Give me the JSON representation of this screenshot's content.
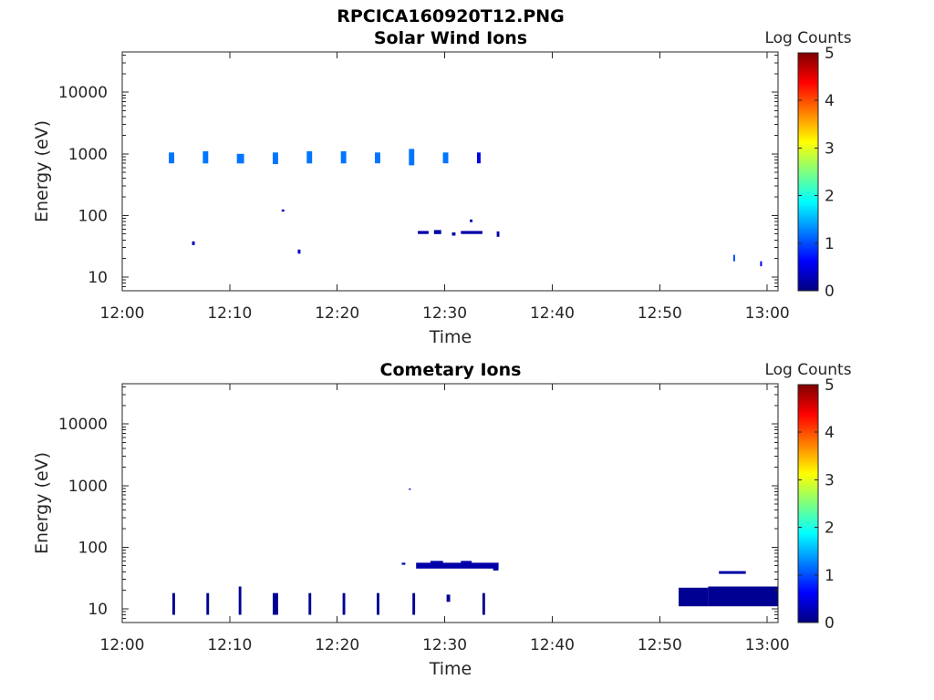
{
  "figure_title": "RPCICA160920T12.PNG",
  "colorbar_ticks": [
    "0",
    "1",
    "2",
    "3",
    "4",
    "5"
  ],
  "colormap": [
    "#00007f",
    "#0000ff",
    "#007fff",
    "#00ffff",
    "#7fff7f",
    "#ffff00",
    "#ff7f00",
    "#ff0000",
    "#7f0000"
  ],
  "chart_data": [
    {
      "type": "heatmap",
      "title": "Solar Wind Ions",
      "xlabel": "Time",
      "ylabel": "Energy (eV)",
      "y_scale": "log",
      "xlim": [
        "12:00",
        "13:01"
      ],
      "ylim": [
        6,
        45000
      ],
      "x_ticks": [
        "12:00",
        "12:10",
        "12:20",
        "12:30",
        "12:40",
        "12:50",
        "13:00"
      ],
      "y_ticks": [
        "10",
        "100",
        "1000",
        "10000"
      ],
      "colorbar_label": "Log Counts",
      "clim": [
        0,
        5
      ],
      "blobs": [
        {
          "t0": "12:04:20",
          "t1": "12:04:50",
          "e0": 700,
          "e1": 1050,
          "level": 1.2
        },
        {
          "t0": "12:07:30",
          "t1": "12:08:00",
          "e0": 700,
          "e1": 1100,
          "level": 1.2
        },
        {
          "t0": "12:10:40",
          "t1": "12:11:20",
          "e0": 700,
          "e1": 1000,
          "level": 1.2
        },
        {
          "t0": "12:14:00",
          "t1": "12:14:30",
          "e0": 680,
          "e1": 1050,
          "level": 1.2
        },
        {
          "t0": "12:17:10",
          "t1": "12:17:40",
          "e0": 700,
          "e1": 1100,
          "level": 1.2
        },
        {
          "t0": "12:20:20",
          "t1": "12:20:50",
          "e0": 700,
          "e1": 1100,
          "level": 1.2
        },
        {
          "t0": "12:23:30",
          "t1": "12:24:00",
          "e0": 700,
          "e1": 1050,
          "level": 1.2
        },
        {
          "t0": "12:26:40",
          "t1": "12:27:10",
          "e0": 650,
          "e1": 1200,
          "level": 1.2
        },
        {
          "t0": "12:29:50",
          "t1": "12:30:20",
          "e0": 700,
          "e1": 1050,
          "level": 1.2
        },
        {
          "t0": "12:33:00",
          "t1": "12:33:20",
          "e0": 700,
          "e1": 1050,
          "level": 0.5
        },
        {
          "t0": "12:06:30",
          "t1": "12:06:45",
          "e0": 33,
          "e1": 38,
          "level": 0.3
        },
        {
          "t0": "12:14:50",
          "t1": "12:15:05",
          "e0": 115,
          "e1": 125,
          "level": 0.3
        },
        {
          "t0": "12:16:20",
          "t1": "12:16:35",
          "e0": 24,
          "e1": 28,
          "level": 0.3
        },
        {
          "t0": "12:27:30",
          "t1": "12:28:30",
          "e0": 50,
          "e1": 56,
          "level": 0.2
        },
        {
          "t0": "12:29:00",
          "t1": "12:29:40",
          "e0": 50,
          "e1": 58,
          "level": 0.2
        },
        {
          "t0": "12:30:40",
          "t1": "12:31:00",
          "e0": 47,
          "e1": 53,
          "level": 0.2
        },
        {
          "t0": "12:31:30",
          "t1": "12:33:30",
          "e0": 50,
          "e1": 56,
          "level": 0.2
        },
        {
          "t0": "12:32:20",
          "t1": "12:32:35",
          "e0": 78,
          "e1": 86,
          "level": 0.2
        },
        {
          "t0": "12:34:50",
          "t1": "12:35:05",
          "e0": 45,
          "e1": 55,
          "level": 0.2
        },
        {
          "t0": "12:56:50",
          "t1": "12:57:00",
          "e0": 18,
          "e1": 23,
          "level": 1.0
        },
        {
          "t0": "12:59:20",
          "t1": "12:59:30",
          "e0": 15,
          "e1": 18,
          "level": 0.5
        }
      ]
    },
    {
      "type": "heatmap",
      "title": "Cometary Ions",
      "xlabel": "Time",
      "ylabel": "Energy (eV)",
      "y_scale": "log",
      "xlim": [
        "12:00",
        "13:01"
      ],
      "ylim": [
        6,
        45000
      ],
      "x_ticks": [
        "12:00",
        "12:10",
        "12:20",
        "12:30",
        "12:40",
        "12:50",
        "13:00"
      ],
      "y_ticks": [
        "10",
        "100",
        "1000",
        "10000"
      ],
      "colorbar_label": "Log Counts",
      "clim": [
        0,
        5
      ],
      "blobs": [
        {
          "t0": "12:04:40",
          "t1": "12:04:55",
          "e0": 8,
          "e1": 18,
          "level": 0.1
        },
        {
          "t0": "12:07:50",
          "t1": "12:08:05",
          "e0": 8,
          "e1": 18,
          "level": 0.1
        },
        {
          "t0": "12:10:50",
          "t1": "12:11:05",
          "e0": 8,
          "e1": 23,
          "level": 0.1
        },
        {
          "t0": "12:14:00",
          "t1": "12:14:30",
          "e0": 8,
          "e1": 18,
          "level": 0.1
        },
        {
          "t0": "12:17:20",
          "t1": "12:17:35",
          "e0": 8,
          "e1": 18,
          "level": 0.1
        },
        {
          "t0": "12:20:30",
          "t1": "12:20:45",
          "e0": 8,
          "e1": 18,
          "level": 0.1
        },
        {
          "t0": "12:23:40",
          "t1": "12:23:55",
          "e0": 8,
          "e1": 18,
          "level": 0.1
        },
        {
          "t0": "12:27:00",
          "t1": "12:27:15",
          "e0": 8,
          "e1": 18,
          "level": 0.1
        },
        {
          "t0": "12:30:10",
          "t1": "12:30:30",
          "e0": 13,
          "e1": 17,
          "level": 0.1
        },
        {
          "t0": "12:33:30",
          "t1": "12:33:45",
          "e0": 8,
          "e1": 18,
          "level": 0.1
        },
        {
          "t0": "12:26:00",
          "t1": "12:26:20",
          "e0": 52,
          "e1": 56,
          "level": 0.2
        },
        {
          "t0": "12:27:20",
          "t1": "12:35:00",
          "e0": 45,
          "e1": 56,
          "level": 0.2
        },
        {
          "t0": "12:28:40",
          "t1": "12:29:50",
          "e0": 55,
          "e1": 60,
          "level": 0.2
        },
        {
          "t0": "12:31:30",
          "t1": "12:32:30",
          "e0": 55,
          "e1": 60,
          "level": 0.2
        },
        {
          "t0": "12:34:30",
          "t1": "12:35:00",
          "e0": 42,
          "e1": 46,
          "level": 0.2
        },
        {
          "t0": "12:26:40",
          "t1": "12:26:50",
          "e0": 860,
          "e1": 900,
          "level": 0.3
        },
        {
          "t0": "12:51:45",
          "t1": "12:54:30",
          "e0": 11,
          "e1": 22,
          "level": 0.1
        },
        {
          "t0": "12:54:30",
          "t1": "13:01:00",
          "e0": 11,
          "e1": 23,
          "level": 0.1
        },
        {
          "t0": "12:55:30",
          "t1": "12:58:00",
          "e0": 37,
          "e1": 41,
          "level": 0.2
        }
      ]
    }
  ]
}
